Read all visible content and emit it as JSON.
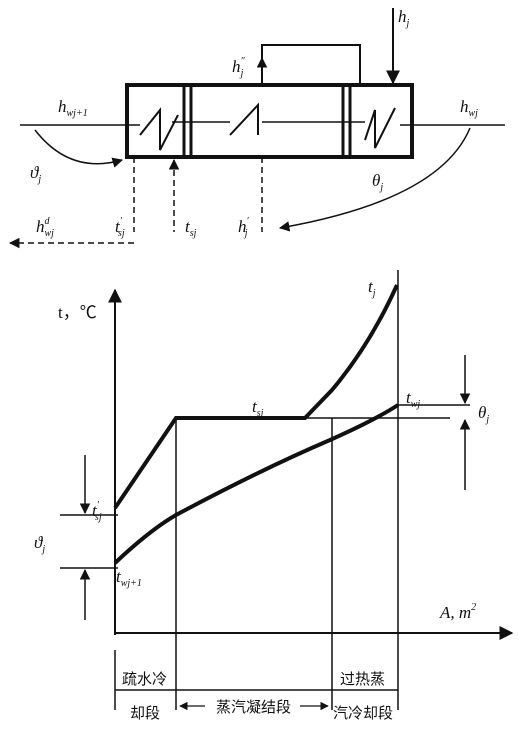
{
  "top": {
    "h_j": "h",
    "h_j_sub": "j",
    "h_j_dd": "h",
    "h_j_dd_sub": "j",
    "h_j_dd_sup": "″",
    "h_wj1": "h",
    "h_wj1_sub": "wj+1",
    "h_wj": "h",
    "h_wj_sub": "wj",
    "theta_small": "ϑ",
    "theta_small_sub": "j",
    "theta_big": "θ",
    "theta_big_sub": "j",
    "h_wj_d": "h",
    "h_wj_d_sub": "wj",
    "h_wj_d_sup": "d",
    "t_sj_p": "t",
    "t_sj_p_sub": "sj",
    "t_sj_p_sup": "′",
    "t_sj": "t",
    "t_sj_sub": "sj",
    "h_j_p": "h",
    "h_j_p_sub": "j",
    "h_j_p_sup": "′"
  },
  "chart": {
    "ylabel": "t，℃",
    "xlabel": "A, m",
    "xlabel_sup": "2",
    "t_j": "t",
    "t_j_sub": "j",
    "t_sj": "t",
    "t_sj_sub": "sj",
    "t_wj": "t",
    "t_wj_sub": "wj",
    "theta_big": "θ",
    "theta_big_sub": "j",
    "t_sj_p": "t",
    "t_sj_p_sub": "sj",
    "t_sj_p_sup": "′",
    "theta_small": "ϑ",
    "theta_small_sub": "j",
    "t_wj1": "t",
    "t_wj1_sub": "wj+1"
  },
  "sections": {
    "s1_line1": "疏水冷",
    "s1_line2": "却段",
    "s2": "蒸汽凝结段",
    "s3_line1": "过热蒸",
    "s3_line2": "汽冷却段"
  }
}
